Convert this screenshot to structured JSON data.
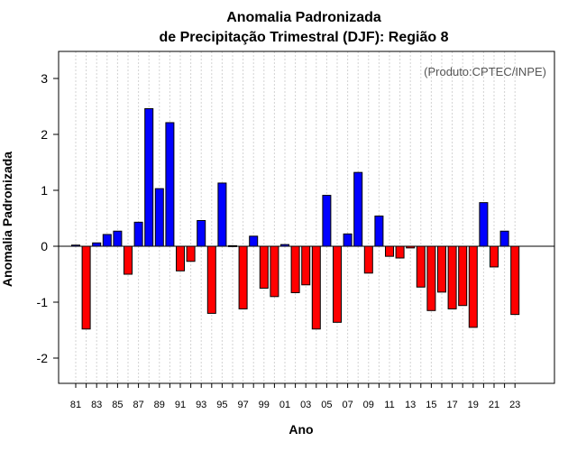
{
  "chart_data": {
    "type": "bar",
    "title_line1": "Anomalia Padronizada",
    "title_line2": "de Precipitação Trimestral (DJF): Região 8",
    "xlabel": "Ano",
    "ylabel": "Anomalia Padronizada",
    "annotation": "(Produto:CPTEC/INPE)",
    "ylim": [
      -2.5,
      3.5
    ],
    "yticks": [
      -2,
      -1,
      0,
      1,
      2,
      3
    ],
    "ytick_labels": [
      "-2",
      "-1",
      "0",
      "1",
      "2",
      "3"
    ],
    "years": [
      1981,
      1982,
      1983,
      1984,
      1985,
      1986,
      1987,
      1988,
      1989,
      1990,
      1991,
      1992,
      1993,
      1994,
      1995,
      1996,
      1997,
      1998,
      1999,
      2000,
      2001,
      2002,
      2003,
      2004,
      2005,
      2006,
      2007,
      2008,
      2009,
      2010,
      2011,
      2012,
      2013,
      2014,
      2015,
      2016,
      2017,
      2018,
      2019,
      2020,
      2021,
      2022,
      2023
    ],
    "xtick_labels": [
      "81",
      "83",
      "85",
      "87",
      "89",
      "91",
      "93",
      "95",
      "97",
      "99",
      "01",
      "03",
      "05",
      "07",
      "09",
      "11",
      "13",
      "15",
      "17",
      "19",
      "21",
      "23"
    ],
    "xtick_years": [
      1981,
      1983,
      1985,
      1987,
      1989,
      1991,
      1993,
      1995,
      1997,
      1999,
      2001,
      2003,
      2005,
      2007,
      2009,
      2011,
      2013,
      2015,
      2017,
      2019,
      2021,
      2023
    ],
    "values": [
      0.02,
      -1.48,
      0.06,
      0.21,
      0.27,
      -0.5,
      0.43,
      2.46,
      1.03,
      2.21,
      -0.44,
      -0.27,
      0.46,
      -1.2,
      1.13,
      0.01,
      -1.12,
      0.18,
      -0.75,
      -0.9,
      0.03,
      -0.83,
      -0.69,
      -1.48,
      0.91,
      -1.36,
      0.22,
      1.32,
      -0.48,
      0.54,
      -0.18,
      -0.21,
      -0.03,
      -0.73,
      -1.15,
      -0.82,
      -1.12,
      -1.06,
      -1.45,
      0.78,
      -0.37,
      0.27,
      -1.22
    ],
    "positive_color": "#0000ff",
    "negative_color": "#ff0000",
    "grid": true
  }
}
